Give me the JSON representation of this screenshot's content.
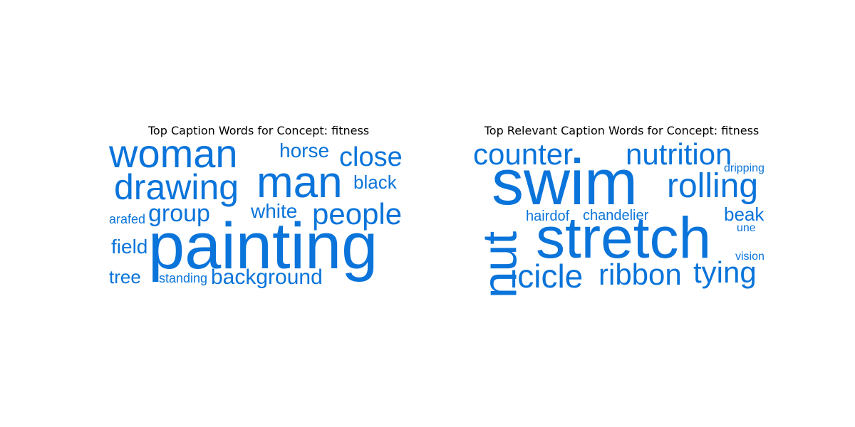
{
  "word_color": "#0a74da",
  "panels": [
    {
      "title": "Top Caption Words for Concept: fitness",
      "words": [
        "woman",
        "horse",
        "close",
        "drawing",
        "man",
        "black",
        "arafed",
        "group",
        "white",
        "people",
        "field",
        "painting",
        "tree",
        "standing",
        "background"
      ]
    },
    {
      "title": "Top Relevant Caption Words for Concept: fitness",
      "words": [
        "counter",
        "nutrition",
        "swim",
        "dripping",
        "rolling",
        "nut",
        "hairdof",
        "chandelier",
        "beak",
        "une",
        "stretch",
        "vision",
        "icicle",
        "ribbon",
        "tying"
      ]
    }
  ]
}
